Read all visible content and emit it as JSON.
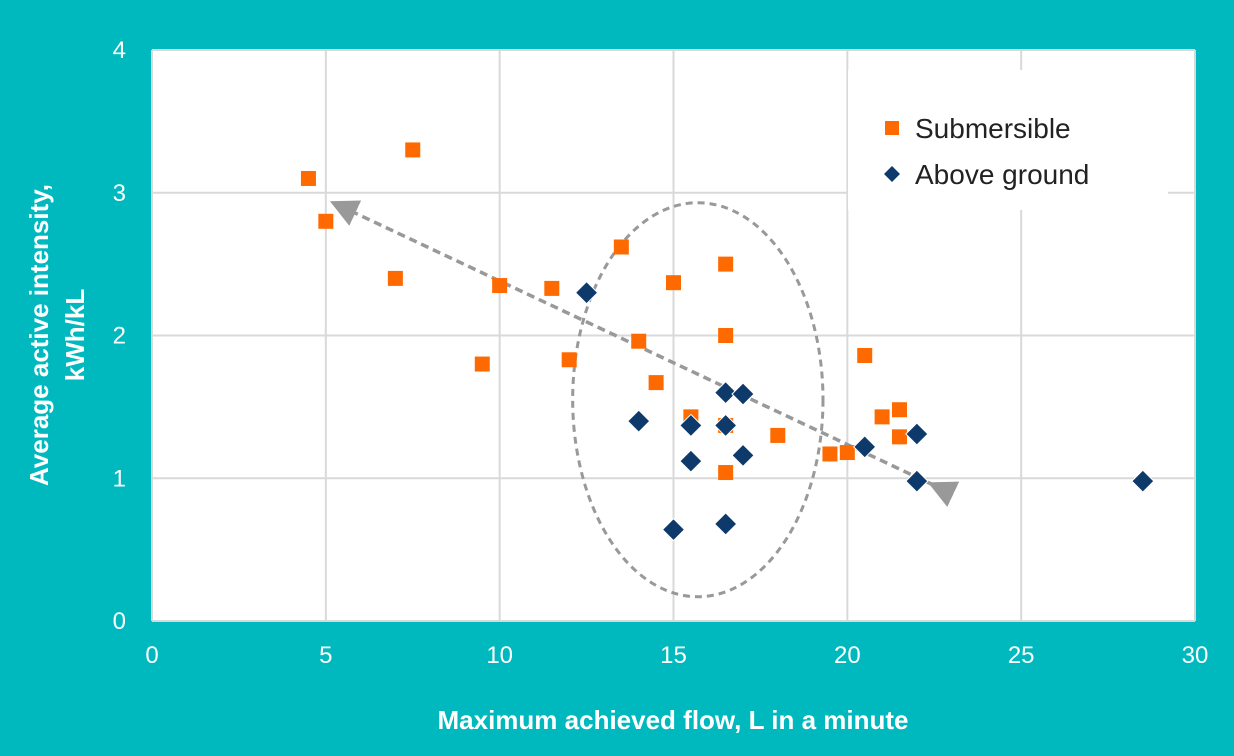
{
  "chart_data": {
    "type": "scatter",
    "title": "",
    "xlabel": "Maximum achieved flow, L in a minute",
    "ylabel_lines": [
      "Average active intensity,",
      "kWh/kL"
    ],
    "xlim": [
      0,
      30
    ],
    "ylim": [
      0,
      4
    ],
    "x_ticks": [
      "0",
      "5",
      "10",
      "15",
      "20",
      "25",
      "30"
    ],
    "y_ticks": [
      "0",
      "1",
      "2",
      "3",
      "4"
    ],
    "grid": true,
    "legend_placement": "top-right",
    "series": [
      {
        "name": "Submersible",
        "marker": "square",
        "color": "#FF6A00",
        "points": [
          [
            4.5,
            3.1
          ],
          [
            5.0,
            2.8
          ],
          [
            7.0,
            2.4
          ],
          [
            7.5,
            3.3
          ],
          [
            9.5,
            1.8
          ],
          [
            10.0,
            2.35
          ],
          [
            11.5,
            2.33
          ],
          [
            12.0,
            1.83
          ],
          [
            13.5,
            2.62
          ],
          [
            14.0,
            1.96
          ],
          [
            14.5,
            1.67
          ],
          [
            15.0,
            2.37
          ],
          [
            15.5,
            1.43
          ],
          [
            16.5,
            2.5
          ],
          [
            16.5,
            2.0
          ],
          [
            16.5,
            1.37
          ],
          [
            16.5,
            1.04
          ],
          [
            18.0,
            1.3
          ],
          [
            19.5,
            1.17
          ],
          [
            20.0,
            1.18
          ],
          [
            20.5,
            1.86
          ],
          [
            21.0,
            1.43
          ],
          [
            21.5,
            1.48
          ],
          [
            21.5,
            1.29
          ]
        ]
      },
      {
        "name": "Above ground",
        "marker": "diamond",
        "color": "#0E3A6B",
        "points": [
          [
            12.5,
            2.3
          ],
          [
            14.0,
            1.4
          ],
          [
            15.0,
            0.64
          ],
          [
            15.5,
            1.37
          ],
          [
            15.5,
            1.12
          ],
          [
            16.5,
            1.6
          ],
          [
            16.5,
            1.37
          ],
          [
            16.5,
            0.68
          ],
          [
            17.0,
            1.59
          ],
          [
            17.0,
            1.16
          ],
          [
            20.5,
            1.22
          ],
          [
            22.0,
            1.31
          ],
          [
            22.0,
            0.98
          ],
          [
            28.5,
            0.98
          ]
        ]
      }
    ],
    "trend_arrow": {
      "from": [
        22.5,
        0.95
      ],
      "to": [
        5.3,
        2.92
      ],
      "color": "#999999"
    },
    "ellipse": {
      "cx": 15.7,
      "cy": 1.55,
      "rx": 7.2,
      "ry": 1.38,
      "color": "#999999"
    }
  }
}
